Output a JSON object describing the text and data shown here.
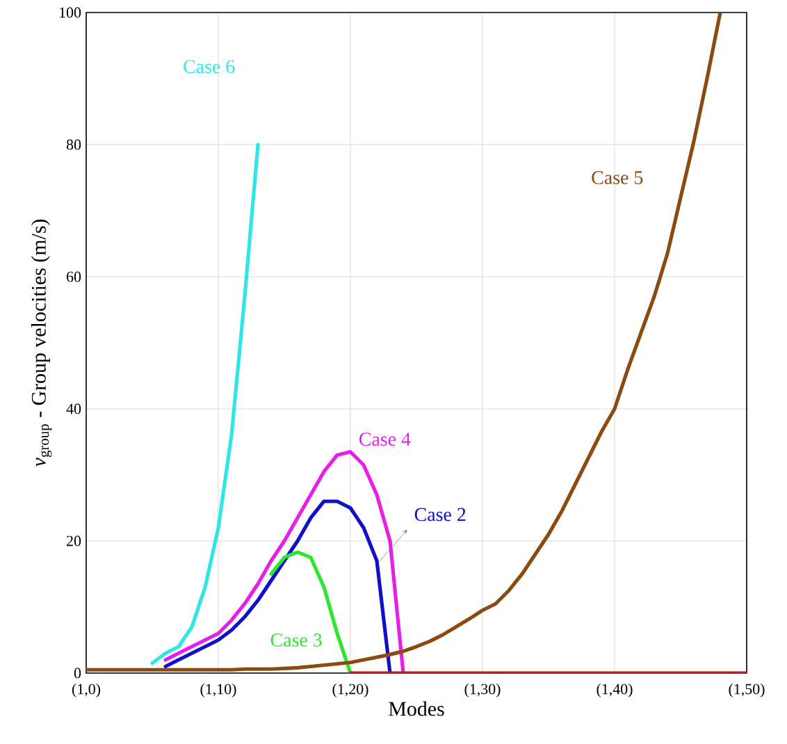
{
  "chart_data": {
    "type": "line",
    "xlabel": "Modes",
    "ylabel": "*v*$_{group}$ - Group velocities (m/s)",
    "categories": [
      "(1,0)",
      null,
      null,
      null,
      null,
      null,
      null,
      null,
      null,
      null,
      "(1,10)",
      null,
      null,
      null,
      null,
      null,
      null,
      null,
      null,
      null,
      "(1,20)",
      null,
      null,
      null,
      null,
      null,
      null,
      null,
      null,
      null,
      "(1,30)",
      null,
      null,
      null,
      null,
      null,
      null,
      null,
      null,
      null,
      "(1,40)",
      null,
      null,
      null,
      null,
      null,
      null,
      null,
      null,
      null,
      "(1,50)"
    ],
    "ylim": [
      0,
      100
    ],
    "yticks": [
      0,
      20,
      40,
      60,
      80,
      100
    ],
    "grid": true,
    "marker": "none",
    "line_style": "solid",
    "series": [
      {
        "name": "Case 6",
        "color": "#2ee6e6",
        "values": [
          null,
          null,
          null,
          null,
          null,
          1.5,
          3,
          4,
          7,
          13,
          22,
          36,
          57,
          80,
          null,
          null,
          null,
          null,
          null,
          null,
          null,
          null,
          null,
          null,
          null,
          null,
          null,
          null,
          null,
          null,
          null,
          null,
          null,
          null,
          null,
          null,
          null,
          null,
          null,
          null,
          null,
          null,
          null,
          null,
          null,
          null,
          null,
          null,
          null,
          null,
          null
        ]
      },
      {
        "name": "Case 4",
        "color": "#e61ee6",
        "values": [
          null,
          null,
          null,
          null,
          null,
          null,
          2,
          3,
          4,
          5,
          6,
          8,
          10.5,
          13.5,
          17,
          20,
          23.5,
          27,
          30.5,
          33,
          33.5,
          31.5,
          27,
          20,
          0,
          null,
          null,
          null,
          null,
          null,
          null,
          null,
          null,
          null,
          null,
          null,
          null,
          null,
          null,
          null,
          null,
          null,
          null,
          null,
          null,
          null,
          null,
          null,
          null,
          null,
          null
        ]
      },
      {
        "name": "Case 2",
        "color": "#1010c8",
        "values": [
          null,
          null,
          null,
          null,
          null,
          null,
          1,
          2,
          3,
          4,
          5,
          6.5,
          8.5,
          11,
          14,
          17,
          20,
          23.5,
          26,
          26,
          25,
          22,
          17,
          0,
          null,
          null,
          null,
          null,
          null,
          null,
          null,
          null,
          null,
          null,
          null,
          null,
          null,
          null,
          null,
          null,
          null,
          null,
          null,
          null,
          null,
          null,
          null,
          null,
          null,
          null,
          null
        ]
      },
      {
        "name": "Case 3",
        "color": "#2ee62e",
        "values": [
          null,
          null,
          null,
          null,
          null,
          null,
          null,
          null,
          null,
          null,
          null,
          null,
          null,
          null,
          15,
          17.5,
          18.3,
          17.5,
          13,
          6,
          0,
          null,
          null,
          null,
          null,
          null,
          null,
          null,
          null,
          null,
          null,
          null,
          null,
          null,
          null,
          null,
          null,
          null,
          null,
          null,
          null,
          null,
          null,
          null,
          null,
          null,
          null,
          null,
          null,
          null,
          null
        ]
      },
      {
        "name": "Case 5",
        "color": "#8b4a0f",
        "values": [
          0.5,
          0.5,
          0.5,
          0.5,
          0.5,
          0.5,
          0.5,
          0.5,
          0.5,
          0.5,
          0.5,
          0.5,
          0.6,
          0.6,
          0.6,
          0.7,
          0.8,
          1,
          1.2,
          1.4,
          1.6,
          2,
          2.4,
          2.8,
          3.3,
          4,
          4.8,
          5.8,
          7,
          8.2,
          9.5,
          10.5,
          12.5,
          15,
          18,
          21,
          24.5,
          28.5,
          32.5,
          36.5,
          40,
          46,
          51.5,
          57,
          63.5,
          72,
          80.5,
          90,
          100,
          null,
          null
        ]
      },
      {
        "color": "#e61010",
        "values": [
          null,
          null,
          null,
          null,
          null,
          null,
          null,
          null,
          null,
          null,
          null,
          null,
          null,
          null,
          null,
          null,
          null,
          null,
          null,
          null,
          0,
          0,
          0,
          0,
          0,
          0,
          0,
          0,
          0,
          0,
          0,
          0,
          0,
          0,
          0,
          0,
          0,
          0,
          0,
          0,
          0,
          0,
          0,
          0,
          0,
          0,
          0,
          0,
          0,
          0,
          0
        ]
      }
    ]
  }
}
